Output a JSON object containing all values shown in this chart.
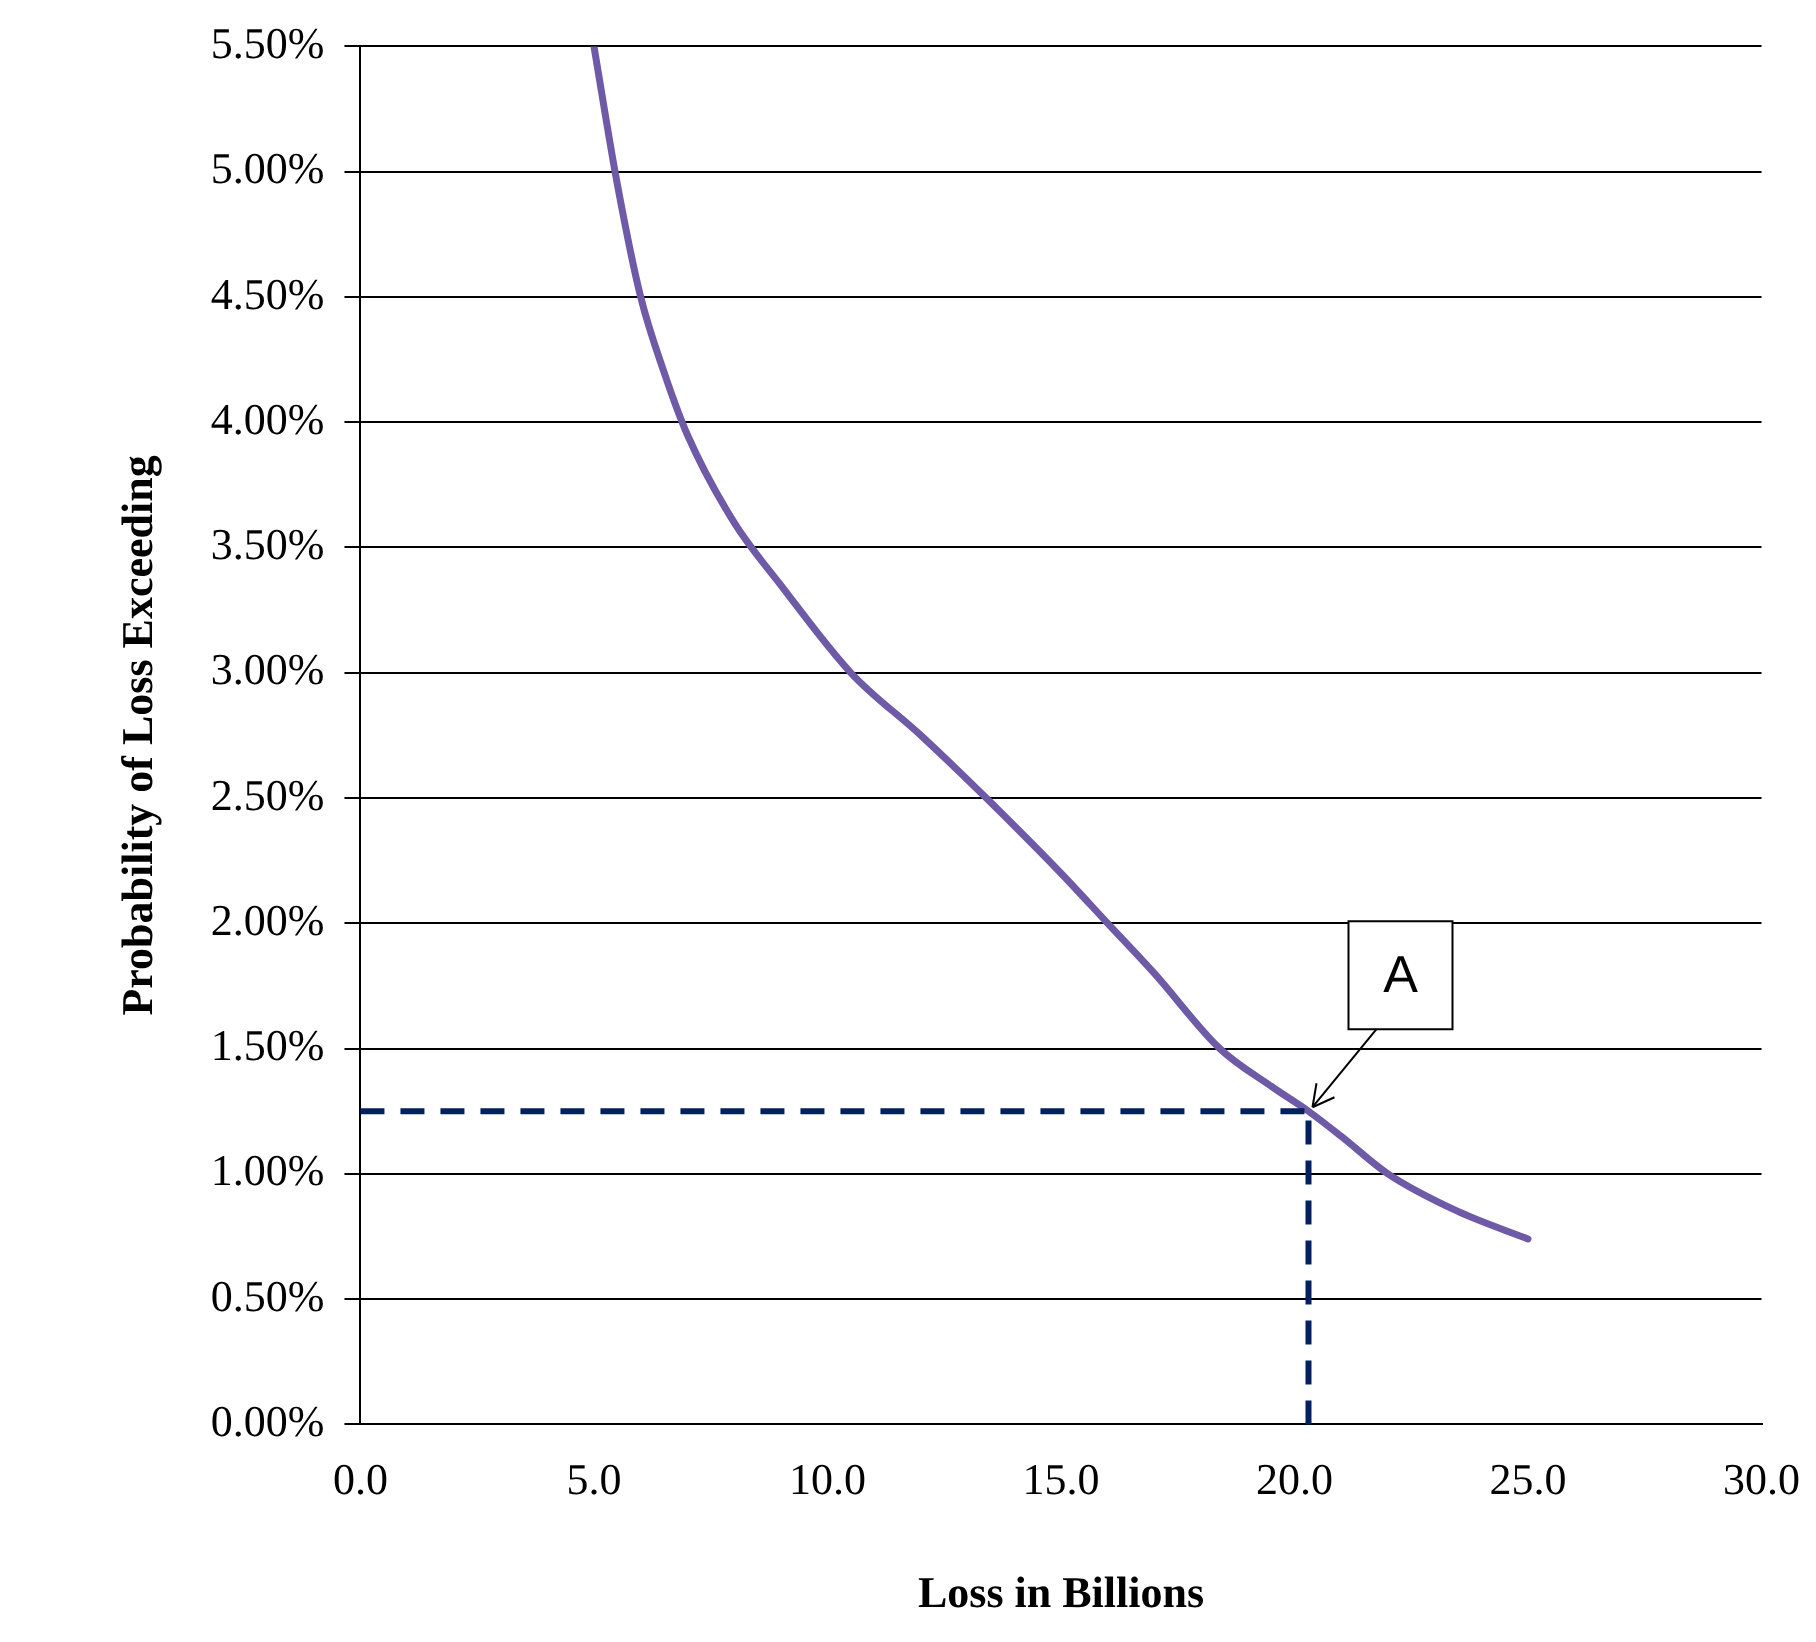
{
  "chart_data": {
    "type": "line",
    "xlabel": "Loss in Billions",
    "ylabel": "Probability of Loss Exceeding",
    "series": [
      {
        "color": "#6e5aa6",
        "x": [
          5.0,
          5.5,
          6.0,
          6.5,
          7.0,
          8.0,
          9.0,
          10.5,
          12.0,
          13.4,
          15.0,
          16.0,
          17.0,
          18.4,
          19.5,
          20.3,
          21.0,
          22.0,
          23.5,
          25.0
        ],
        "values": [
          5.5,
          4.95,
          4.5,
          4.2,
          3.95,
          3.6,
          3.35,
          3.0,
          2.75,
          2.5,
          2.2,
          2.0,
          1.8,
          1.5,
          1.35,
          1.25,
          1.15,
          1.0,
          0.85,
          0.74
        ]
      }
    ],
    "xlim": [
      0,
      30
    ],
    "xticks": [
      {
        "value": 0,
        "label": "0.0"
      },
      {
        "value": 5,
        "label": "5.0"
      },
      {
        "value": 10,
        "label": "10.0"
      },
      {
        "value": 15,
        "label": "15.0"
      },
      {
        "value": 20,
        "label": "20.0"
      },
      {
        "value": 25,
        "label": "25.0"
      },
      {
        "value": 30,
        "label": "30.0"
      }
    ],
    "ylim": [
      0,
      5.5
    ],
    "yticks": [
      {
        "value": 0,
        "label": "0.00%"
      },
      {
        "value": 0.5,
        "label": "0.50%"
      },
      {
        "value": 1,
        "label": "1.00%"
      },
      {
        "value": 1.5,
        "label": "1.50%"
      },
      {
        "value": 2,
        "label": "2.00%"
      },
      {
        "value": 2.5,
        "label": "2.50%"
      },
      {
        "value": 3,
        "label": "3.00%"
      },
      {
        "value": 3.5,
        "label": "3.50%"
      },
      {
        "value": 4,
        "label": "4.00%"
      },
      {
        "value": 4.5,
        "label": "4.50%"
      },
      {
        "value": 5,
        "label": "5.00%"
      },
      {
        "value": 5.5,
        "label": "5.50%"
      }
    ],
    "ref_lines": [
      {
        "axis": "y",
        "value": 1.25,
        "color": "#002060",
        "line_style": "dashed"
      },
      {
        "axis": "x",
        "value": 20.3,
        "color": "#002060",
        "line_style": "dashed"
      }
    ],
    "annotations": [
      {
        "text": "A",
        "x": 20.3,
        "y": 1.25
      }
    ],
    "grid": "y",
    "legend": false,
    "marker": "none",
    "line_style": "solid"
  }
}
